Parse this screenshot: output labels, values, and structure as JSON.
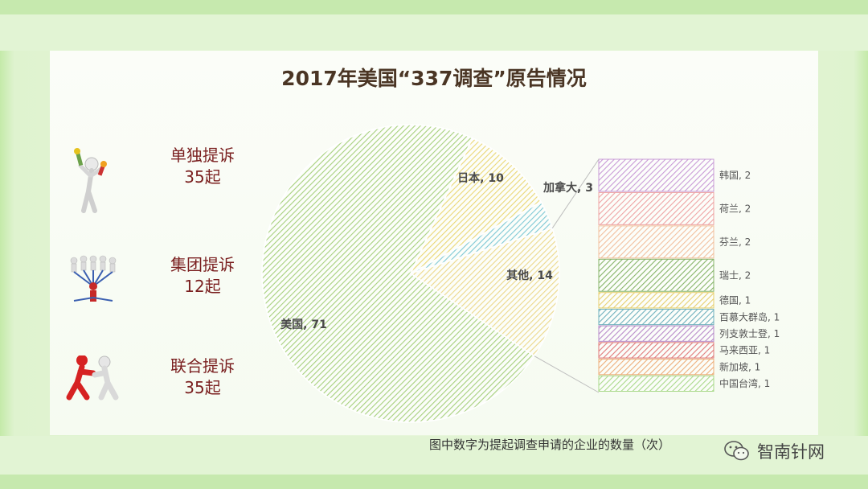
{
  "title": "2017年美国“337调查”原告情况",
  "categories": [
    {
      "label_line1": "单独提诉",
      "label_line2": "35起"
    },
    {
      "label_line1": "集团提诉",
      "label_line2": "12起"
    },
    {
      "label_line1": "联合提诉",
      "label_line2": "35起"
    }
  ],
  "note": "图中数字为提起调查申请的企业的数量（次）",
  "brand": "智南针网",
  "colors": {
    "usa": "#a6d07c",
    "japan": "#ead774",
    "canada": "#7ec8d4",
    "other": "#ecd88a",
    "korea": "#c89ad6",
    "netherlands": "#eea3a3",
    "finland": "#f2c09e",
    "swiss": "#86b468",
    "germany": "#e7cf6e",
    "bermuda": "#6fb1bd",
    "liechtenstein": "#b78ac9",
    "malaysia": "#e07a7a",
    "singapore": "#eeae7a",
    "taiwan": "#a9d98a"
  },
  "chart_data": {
    "type": "pie",
    "title": "2017年美国“337调查”原告情况",
    "slices": [
      {
        "name": "美国",
        "value": 71,
        "label": "美国, 71",
        "color_key": "usa"
      },
      {
        "name": "日本",
        "value": 10,
        "label": "日本, 10",
        "color_key": "japan"
      },
      {
        "name": "加拿大",
        "value": 3,
        "label": "加拿大, 3",
        "color_key": "canada"
      },
      {
        "name": "其他",
        "value": 14,
        "label": "其他, 14",
        "color_key": "other"
      }
    ],
    "breakdown": {
      "of": "其他",
      "type": "bar-of-pie",
      "items": [
        {
          "name": "韩国",
          "value": 2,
          "label": "韩国, 2",
          "color_key": "korea"
        },
        {
          "name": "荷兰",
          "value": 2,
          "label": "荷兰, 2",
          "color_key": "netherlands"
        },
        {
          "name": "芬兰",
          "value": 2,
          "label": "芬兰, 2",
          "color_key": "finland"
        },
        {
          "name": "瑞士",
          "value": 2,
          "label": "瑞士, 2",
          "color_key": "swiss"
        },
        {
          "name": "德国",
          "value": 1,
          "label": "德国, 1",
          "color_key": "germany"
        },
        {
          "name": "百慕大群岛",
          "value": 1,
          "label": "百慕大群岛, 1",
          "color_key": "bermuda"
        },
        {
          "name": "列支敦士登",
          "value": 1,
          "label": "列支敦士登, 1",
          "color_key": "liechtenstein"
        },
        {
          "name": "马来西亚",
          "value": 1,
          "label": "马来西亚, 1",
          "color_key": "malaysia"
        },
        {
          "name": "新加坡",
          "value": 1,
          "label": "新加坡, 1",
          "color_key": "singapore"
        },
        {
          "name": "中国台湾",
          "value": 1,
          "label": "中国台湾, 1",
          "color_key": "taiwan"
        }
      ]
    }
  }
}
